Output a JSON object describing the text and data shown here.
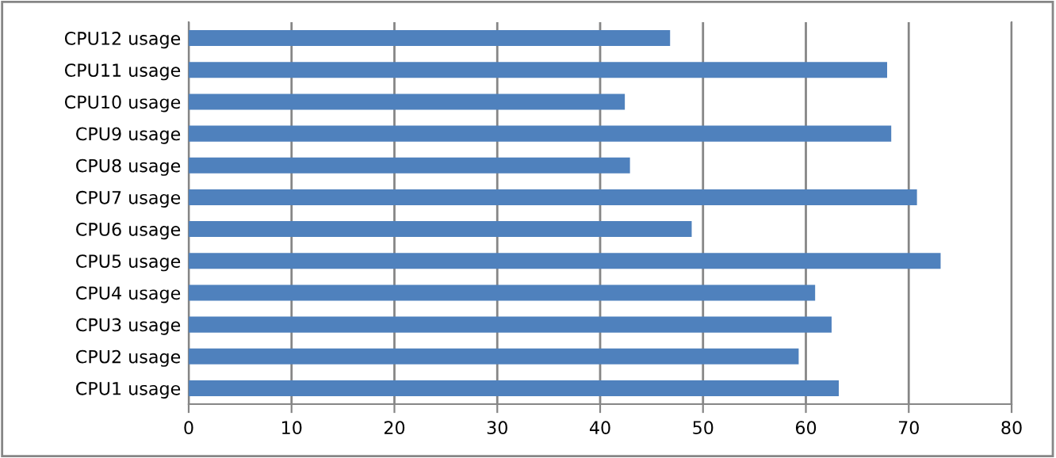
{
  "chart_data": {
    "type": "bar",
    "orientation": "horizontal",
    "categories": [
      "CPU12 usage",
      "CPU11 usage",
      "CPU10 usage",
      "CPU9 usage",
      "CPU8 usage",
      "CPU7 usage",
      "CPU6 usage",
      "CPU5 usage",
      "CPU4 usage",
      "CPU3 usage",
      "CPU2 usage",
      "CPU1 usage"
    ],
    "values": [
      46.8,
      67.9,
      42.4,
      68.3,
      42.9,
      70.8,
      48.9,
      73.1,
      60.9,
      62.5,
      59.3,
      63.2
    ],
    "color": "#4f81bd",
    "xlim": [
      0,
      80
    ],
    "xticks": [
      0,
      10,
      20,
      30,
      40,
      50,
      60,
      70,
      80
    ],
    "grid": "x"
  }
}
